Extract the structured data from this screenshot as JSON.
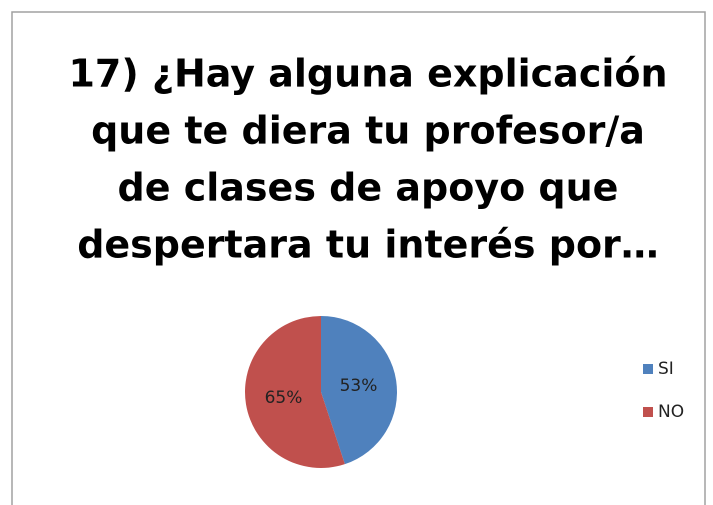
{
  "chart_data": {
    "type": "pie",
    "title": [
      "17) ¿Hay alguna explicación",
      "que te diera tu profesor/a",
      "de clases de apoyo que",
      "despertara tu interés por…"
    ],
    "categories": [
      "SI",
      "NO"
    ],
    "values": [
      53,
      65
    ],
    "value_labels": [
      "53%",
      "65%"
    ],
    "colors": [
      "#4f81bd",
      "#c0504d"
    ],
    "legend": "right"
  }
}
